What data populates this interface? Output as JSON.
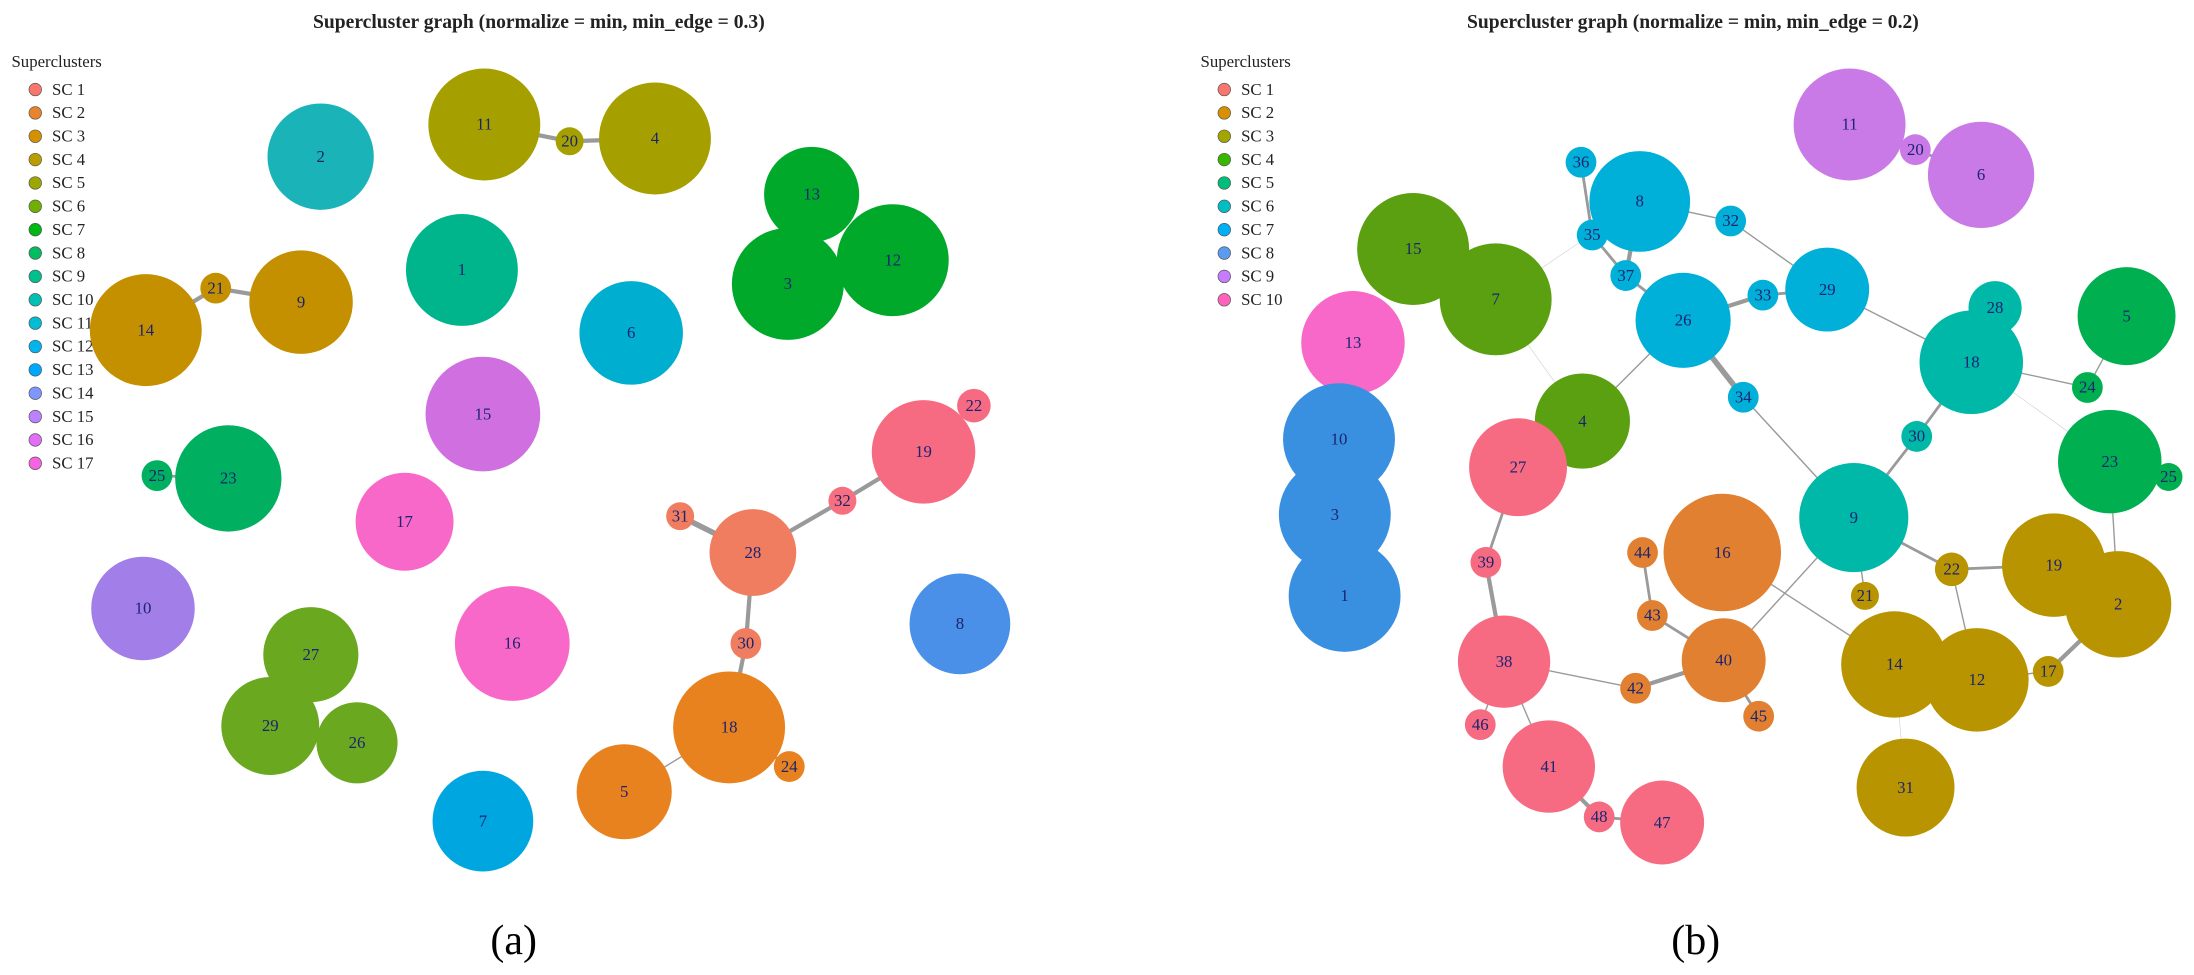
{
  "panels": [
    {
      "title": "Supercluster graph (normalize = min, min_edge = 0.3)",
      "legend_title": "Superclusters",
      "legend": [
        "SC 1",
        "SC 2",
        "SC 3",
        "SC 4",
        "SC 5",
        "SC 6",
        "SC 7",
        "SC 8",
        "SC 9",
        "SC 10",
        "SC 11",
        "SC 12",
        "SC 13",
        "SC 14",
        "SC 15",
        "SC 16",
        "SC 17"
      ],
      "nodes": [
        "11",
        "20",
        "4",
        "2",
        "13",
        "12",
        "3",
        "1",
        "6",
        "21",
        "9",
        "14",
        "15",
        "19",
        "22",
        "23",
        "25",
        "17",
        "32",
        "31",
        "28",
        "10",
        "16",
        "8",
        "27",
        "30",
        "29",
        "26",
        "18",
        "24",
        "5",
        "7"
      ],
      "caption": "(a)"
    },
    {
      "title": "Supercluster graph (normalize = min, min_edge = 0.2)",
      "legend_title": "Superclusters",
      "legend": [
        "SC 1",
        "SC 2",
        "SC 3",
        "SC 4",
        "SC 5",
        "SC 6",
        "SC 7",
        "SC 8",
        "SC 9",
        "SC 10"
      ],
      "nodes": [
        "11",
        "20",
        "6",
        "36",
        "8",
        "32",
        "35",
        "37",
        "15",
        "7",
        "29",
        "33",
        "26",
        "28",
        "5",
        "13",
        "18",
        "24",
        "34",
        "4",
        "10",
        "23",
        "25",
        "30",
        "27",
        "3",
        "9",
        "16",
        "44",
        "39",
        "22",
        "19",
        "1",
        "21",
        "2",
        "43",
        "38",
        "40",
        "14",
        "12",
        "17",
        "42",
        "45",
        "46",
        "41",
        "31",
        "48",
        "47"
      ],
      "caption": "(b)"
    }
  ]
}
